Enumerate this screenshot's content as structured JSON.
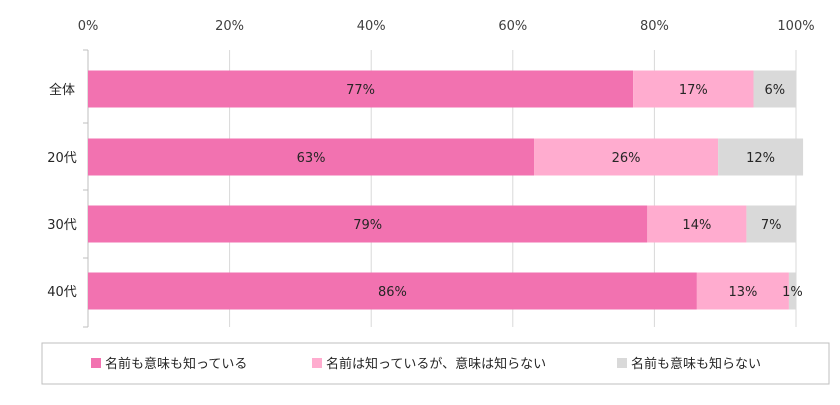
{
  "chart_data": {
    "type": "bar",
    "orientation": "horizontal",
    "stacked": true,
    "categories": [
      "全体",
      "20代",
      "30代",
      "40代"
    ],
    "series": [
      {
        "name": "名前も意味も知っている",
        "values": [
          77,
          63,
          79,
          86
        ],
        "color": "#f272b0",
        "labels": [
          "77%",
          "63%",
          "79%",
          "86%"
        ]
      },
      {
        "name": "名前は知っているが、意味は知らない",
        "values": [
          17,
          26,
          14,
          13
        ],
        "color": "#ffaccf",
        "labels": [
          "17%",
          "26%",
          "14%",
          "13%"
        ]
      },
      {
        "name": "名前も意味も知らない",
        "values": [
          6,
          12,
          7,
          1
        ],
        "color": "#d9d9d9",
        "labels": [
          "6%",
          "12%",
          "7%",
          "1%"
        ]
      }
    ],
    "xlim": [
      0,
      100
    ],
    "x_ticks": [
      "0%",
      "20%",
      "40%",
      "60%",
      "80%",
      "100%"
    ],
    "grid": true,
    "legend_position": "bottom",
    "title": "",
    "xlabel": "",
    "ylabel": ""
  }
}
